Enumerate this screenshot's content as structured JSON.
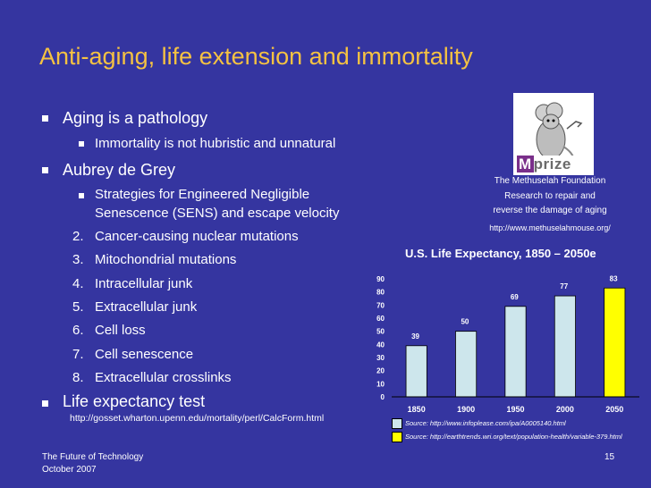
{
  "slide": {
    "title": "Anti-aging, life extension and immortality",
    "bullets": {
      "aging": "Aging is a pathology",
      "immortality": "Immortality is not hubristic and unnatural",
      "grey": "Aubrey de Grey",
      "sens_line1": "Strategies for Engineered Negligible",
      "sens_line2": "Senescence (SENS) and escape velocity",
      "numbered": [
        {
          "num": "2.",
          "text": "Cancer-causing nuclear mutations"
        },
        {
          "num": "3.",
          "text": "Mitochondrial mutations"
        },
        {
          "num": "4.",
          "text": "Intracellular junk"
        },
        {
          "num": "5.",
          "text": "Extracellular junk"
        },
        {
          "num": "6.",
          "text": "Cell loss"
        },
        {
          "num": "7.",
          "text": "Cell senescence"
        },
        {
          "num": "8.",
          "text": "Extracellular crosslinks"
        }
      ],
      "life_expectancy": "Life expectancy test",
      "life_url": "http://gosset.wharton.upenn.edu/mortality/perl/CalcForm.html"
    },
    "mprize": {
      "logo_text": "Mprize",
      "foundation": "The Methuselah Foundation",
      "desc_line1": "Research to repair and",
      "desc_line2": "reverse the damage of aging",
      "url": "http://www.methuselahmouse.org/"
    },
    "footer": {
      "line1": "The Future of Technology",
      "line2": "October 2007",
      "page": "15"
    }
  },
  "colors": {
    "background": "#3535a0",
    "title": "#f5c242",
    "bar_history": "#cde6ec",
    "bar_projection": "#ffff00"
  },
  "chart_data": {
    "type": "bar",
    "title": "U.S. Life Expectancy, 1850 – 2050e",
    "categories": [
      "1850",
      "1900",
      "1950",
      "2000",
      "2050"
    ],
    "values": [
      39,
      50,
      69,
      77,
      83
    ],
    "data_labels": [
      "39",
      "50",
      "69",
      "77",
      "83"
    ],
    "ylim": [
      0,
      90
    ],
    "yticks": [
      "0",
      "10",
      "20",
      "30",
      "40",
      "50",
      "60",
      "70",
      "80",
      "90"
    ],
    "grid": false,
    "sources": [
      "Source: http://www.infoplease.com/ipa/A0005140.html",
      "Source: http://earthtrends.wri.org/text/population-health/variable-379.html"
    ]
  }
}
